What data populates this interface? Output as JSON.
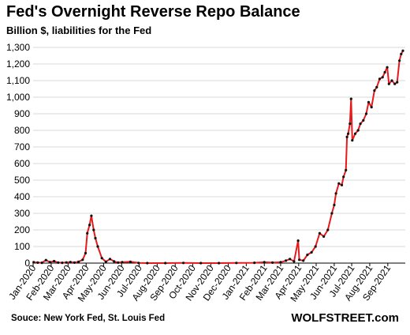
{
  "header": {
    "title": "Fed's Overnight Reverse Repo Balance",
    "subtitle": "Billion $, liabilities for the Fed"
  },
  "footer": {
    "source": "Souce: New York Fed, St. Louis Fed",
    "brand": "WOLFSTREET.com"
  },
  "colors": {
    "line": "#e8191b",
    "markers": "#111111",
    "grid": "#d9d9d9",
    "axis": "#000000"
  },
  "chart_data": {
    "type": "line",
    "title": "Fed's Overnight Reverse Repo Balance",
    "subtitle": "Billion $, liabilities for the Fed",
    "xlabel": "",
    "ylabel": "",
    "ylim": [
      0,
      1300
    ],
    "yticks": [
      0,
      100,
      200,
      300,
      400,
      500,
      600,
      700,
      800,
      900,
      1000,
      1100,
      1200,
      1300
    ],
    "ytick_labels": [
      "0",
      "100",
      "200",
      "300",
      "400",
      "500",
      "600",
      "700",
      "800",
      "900",
      "1,000",
      "1,100",
      "1,200",
      "1,300"
    ],
    "xticks": [
      "2020-01-01",
      "2020-02-01",
      "2020-03-01",
      "2020-04-01",
      "2020-05-01",
      "2020-06-01",
      "2020-07-01",
      "2020-08-01",
      "2020-09-01",
      "2020-10-01",
      "2020-11-01",
      "2020-12-01",
      "2021-01-01",
      "2021-02-01",
      "2021-03-01",
      "2021-04-01",
      "2021-05-01",
      "2021-06-01",
      "2021-07-01",
      "2021-08-01",
      "2021-09-01"
    ],
    "xtick_labels": [
      "Jan-2020",
      "Feb-2020",
      "Mar-2020",
      "Apr-2020",
      "May-2020",
      "Jun-2020",
      "Jul-2020",
      "Aug-2020",
      "Sep-2020",
      "Oct-2020",
      "Nov-2020",
      "Dec-2020",
      "Jan-2021",
      "Feb-2021",
      "Mar-2021",
      "Apr-2021",
      "May-2021",
      "Jun-2021",
      "Jul-2021",
      "Aug-2021",
      "Sep-2021"
    ],
    "xlim": [
      "2020-01-01",
      "2021-10-01"
    ],
    "grid": "horizontal",
    "series": [
      {
        "points": [
          [
            "2020-01-02",
            5
          ],
          [
            "2020-01-09",
            3
          ],
          [
            "2020-01-16",
            2
          ],
          [
            "2020-01-23",
            18
          ],
          [
            "2020-01-30",
            5
          ],
          [
            "2020-02-06",
            12
          ],
          [
            "2020-02-13",
            3
          ],
          [
            "2020-02-20",
            2
          ],
          [
            "2020-02-27",
            4
          ],
          [
            "2020-03-05",
            6
          ],
          [
            "2020-03-12",
            3
          ],
          [
            "2020-03-19",
            8
          ],
          [
            "2020-03-26",
            20
          ],
          [
            "2020-03-31",
            60
          ],
          [
            "2020-04-03",
            180
          ],
          [
            "2020-04-07",
            230
          ],
          [
            "2020-04-10",
            285
          ],
          [
            "2020-04-14",
            200
          ],
          [
            "2020-04-17",
            150
          ],
          [
            "2020-04-21",
            100
          ],
          [
            "2020-04-28",
            30
          ],
          [
            "2020-05-05",
            8
          ],
          [
            "2020-05-12",
            25
          ],
          [
            "2020-05-19",
            10
          ],
          [
            "2020-05-26",
            3
          ],
          [
            "2020-06-02",
            5
          ],
          [
            "2020-06-16",
            8
          ],
          [
            "2020-06-30",
            1
          ],
          [
            "2020-07-15",
            0
          ],
          [
            "2020-08-15",
            0
          ],
          [
            "2020-09-15",
            1
          ],
          [
            "2020-10-15",
            0
          ],
          [
            "2020-11-15",
            0
          ],
          [
            "2020-12-15",
            1
          ],
          [
            "2021-01-15",
            2
          ],
          [
            "2021-02-01",
            5
          ],
          [
            "2021-02-15",
            3
          ],
          [
            "2021-03-01",
            5
          ],
          [
            "2021-03-10",
            15
          ],
          [
            "2021-03-17",
            25
          ],
          [
            "2021-03-24",
            10
          ],
          [
            "2021-03-31",
            135
          ],
          [
            "2021-04-02",
            20
          ],
          [
            "2021-04-09",
            15
          ],
          [
            "2021-04-16",
            50
          ],
          [
            "2021-04-23",
            65
          ],
          [
            "2021-04-30",
            100
          ],
          [
            "2021-05-07",
            180
          ],
          [
            "2021-05-14",
            160
          ],
          [
            "2021-05-21",
            200
          ],
          [
            "2021-05-28",
            300
          ],
          [
            "2021-06-01",
            350
          ],
          [
            "2021-06-04",
            420
          ],
          [
            "2021-06-09",
            480
          ],
          [
            "2021-06-14",
            470
          ],
          [
            "2021-06-17",
            520
          ],
          [
            "2021-06-21",
            560
          ],
          [
            "2021-06-23",
            760
          ],
          [
            "2021-06-25",
            780
          ],
          [
            "2021-06-28",
            840
          ],
          [
            "2021-06-30",
            990
          ],
          [
            "2021-07-02",
            740
          ],
          [
            "2021-07-07",
            780
          ],
          [
            "2021-07-12",
            800
          ],
          [
            "2021-07-16",
            840
          ],
          [
            "2021-07-21",
            860
          ],
          [
            "2021-07-26",
            900
          ],
          [
            "2021-07-30",
            970
          ],
          [
            "2021-08-04",
            940
          ],
          [
            "2021-08-09",
            1040
          ],
          [
            "2021-08-13",
            1060
          ],
          [
            "2021-08-18",
            1110
          ],
          [
            "2021-08-23",
            1120
          ],
          [
            "2021-08-27",
            1150
          ],
          [
            "2021-08-31",
            1180
          ],
          [
            "2021-09-03",
            1080
          ],
          [
            "2021-09-08",
            1100
          ],
          [
            "2021-09-13",
            1080
          ],
          [
            "2021-09-17",
            1090
          ],
          [
            "2021-09-21",
            1220
          ],
          [
            "2021-09-24",
            1260
          ],
          [
            "2021-09-27",
            1280
          ]
        ]
      }
    ]
  }
}
